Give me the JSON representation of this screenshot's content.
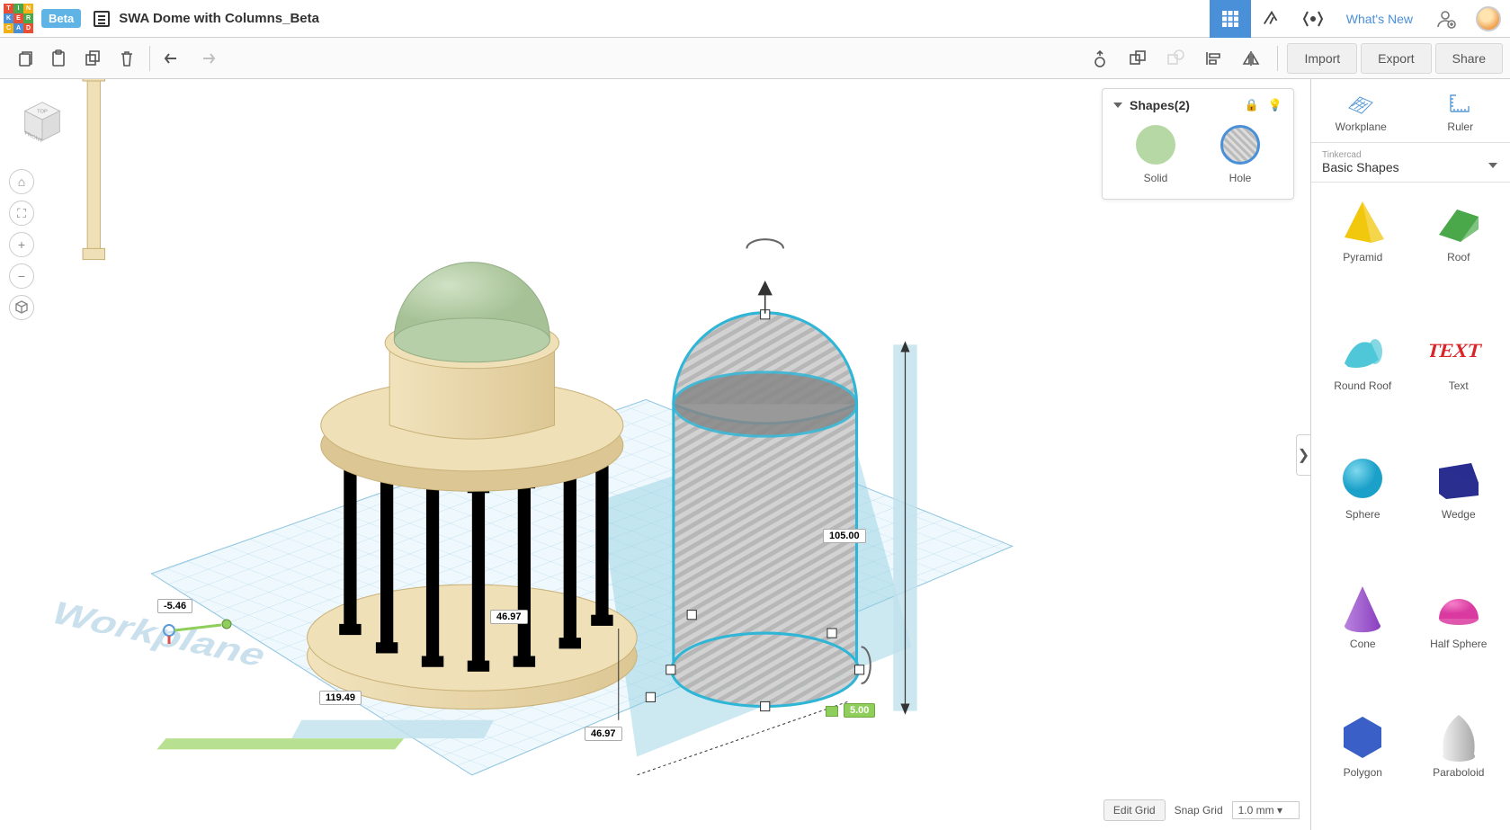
{
  "app": {
    "logo_letters": [
      "T",
      "I",
      "N",
      "K",
      "E",
      "R",
      "C",
      "A",
      "D"
    ],
    "logo_colors": [
      "#e94f35",
      "#4aa84a",
      "#f5b015",
      "#4a90d9",
      "#e94f35",
      "#4aa84a",
      "#f5b015",
      "#4a90d9",
      "#e94f35"
    ],
    "beta_label": "Beta",
    "project_title": "SWA Dome with Columns_Beta",
    "whats_new": "What's New"
  },
  "toolbar": {
    "import": "Import",
    "export": "Export",
    "share": "Share"
  },
  "viewcube": {
    "top": "TOP",
    "front": "FRONT"
  },
  "inspector": {
    "title": "Shapes(2)",
    "solid_label": "Solid",
    "hole_label": "Hole",
    "solid_color": "#b6d8a4"
  },
  "sidebar": {
    "workplane": "Workplane",
    "ruler": "Ruler",
    "category_sub": "Tinkercad",
    "category_main": "Basic Shapes",
    "shapes": [
      {
        "label": "Pyramid",
        "color": "#f2c80f",
        "type": "pyramid"
      },
      {
        "label": "Roof",
        "color": "#4aa84a",
        "type": "roof"
      },
      {
        "label": "Round Roof",
        "color": "#4fc7d8",
        "type": "roundroof"
      },
      {
        "label": "Text",
        "color": "#d9252a",
        "type": "text"
      },
      {
        "label": "Sphere",
        "color": "#1ba0c9",
        "type": "sphere"
      },
      {
        "label": "Wedge",
        "color": "#2a2e8f",
        "type": "wedge"
      },
      {
        "label": "Cone",
        "color": "#8a3fbf",
        "type": "cone"
      },
      {
        "label": "Half Sphere",
        "color": "#d93ba0",
        "type": "halfsphere"
      },
      {
        "label": "Polygon",
        "color": "#3a5fc7",
        "type": "polygon"
      },
      {
        "label": "Paraboloid",
        "color": "#cfcfcf",
        "type": "paraboloid"
      }
    ]
  },
  "footer": {
    "edit_grid": "Edit Grid",
    "snap_label": "Snap Grid",
    "snap_value": "1.0 mm"
  },
  "dimensions": {
    "height": "105.00",
    "width1": "46.97",
    "width2": "46.97",
    "offset_x": "119.49",
    "offset_y": "5.00",
    "offset_neg": "-5.46"
  },
  "scene": {
    "workplane_label": "Workplane",
    "dome_color": "#bdd3b0",
    "stone_color": "#ead9b0",
    "grid_color": "#a9d4ea",
    "selection_color": "#2fb5d6",
    "hole_stripe_a": "#b7b7b7",
    "hole_stripe_b": "#d2d2d2",
    "dim_bar_fill": "#bfe1ec",
    "green_axis": "#8fce5a"
  }
}
